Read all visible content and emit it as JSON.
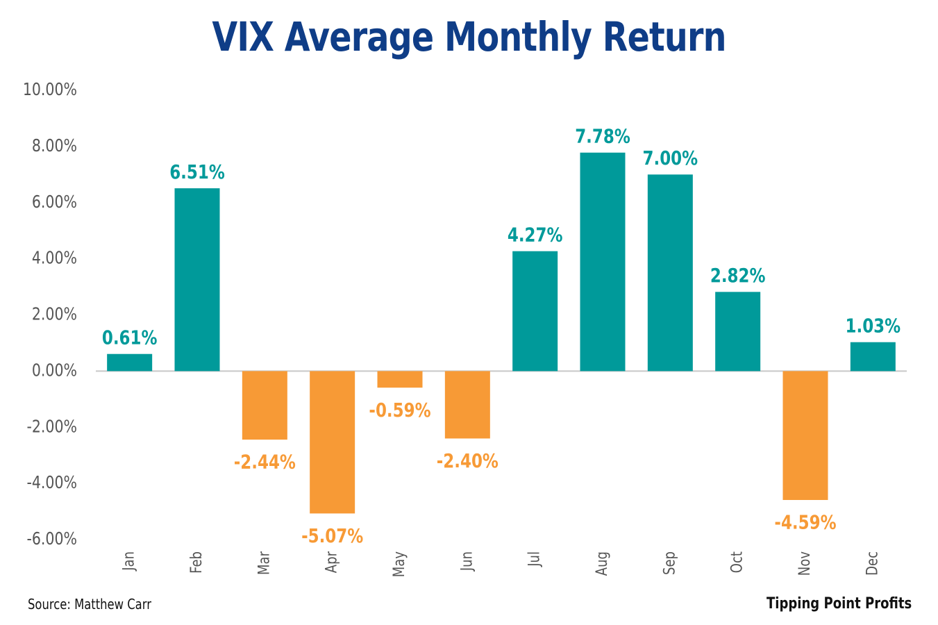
{
  "chart_data": {
    "type": "bar",
    "title": "VIX Average Monthly Return",
    "categories": [
      "Jan",
      "Feb",
      "Mar",
      "Apr",
      "May",
      "Jun",
      "Jul",
      "Aug",
      "Sep",
      "Oct",
      "Nov",
      "Dec"
    ],
    "values": [
      0.61,
      6.51,
      -2.44,
      -5.07,
      -0.59,
      -2.4,
      4.27,
      7.78,
      7.0,
      2.82,
      -4.59,
      1.03
    ],
    "data_labels": [
      "0.61%",
      "6.51%",
      "-2.44%",
      "-5.07%",
      "-0.59%",
      "-2.40%",
      "4.27%",
      "7.78%",
      "7.00%",
      "2.82%",
      "-4.59%",
      "1.03%"
    ],
    "y_ticks": [
      -6,
      -4,
      -2,
      0,
      2,
      4,
      6,
      8,
      10
    ],
    "y_tick_labels": [
      "-6.00%",
      "-4.00%",
      "-2.00%",
      "0.00%",
      "2.00%",
      "4.00%",
      "6.00%",
      "8.00%",
      "10.00%"
    ],
    "ylim": [
      -6,
      10
    ],
    "xlabel": "",
    "ylabel": "",
    "grid": false,
    "legend": "none",
    "colors": {
      "positive": "#009a9a",
      "negative": "#f79a36",
      "title": "#0f3d87",
      "axis_text": "#555555",
      "baseline": "#c8c8c8"
    }
  },
  "footer": {
    "source": "Source: Matthew Carr",
    "brand": "Tipping Point Profits"
  }
}
